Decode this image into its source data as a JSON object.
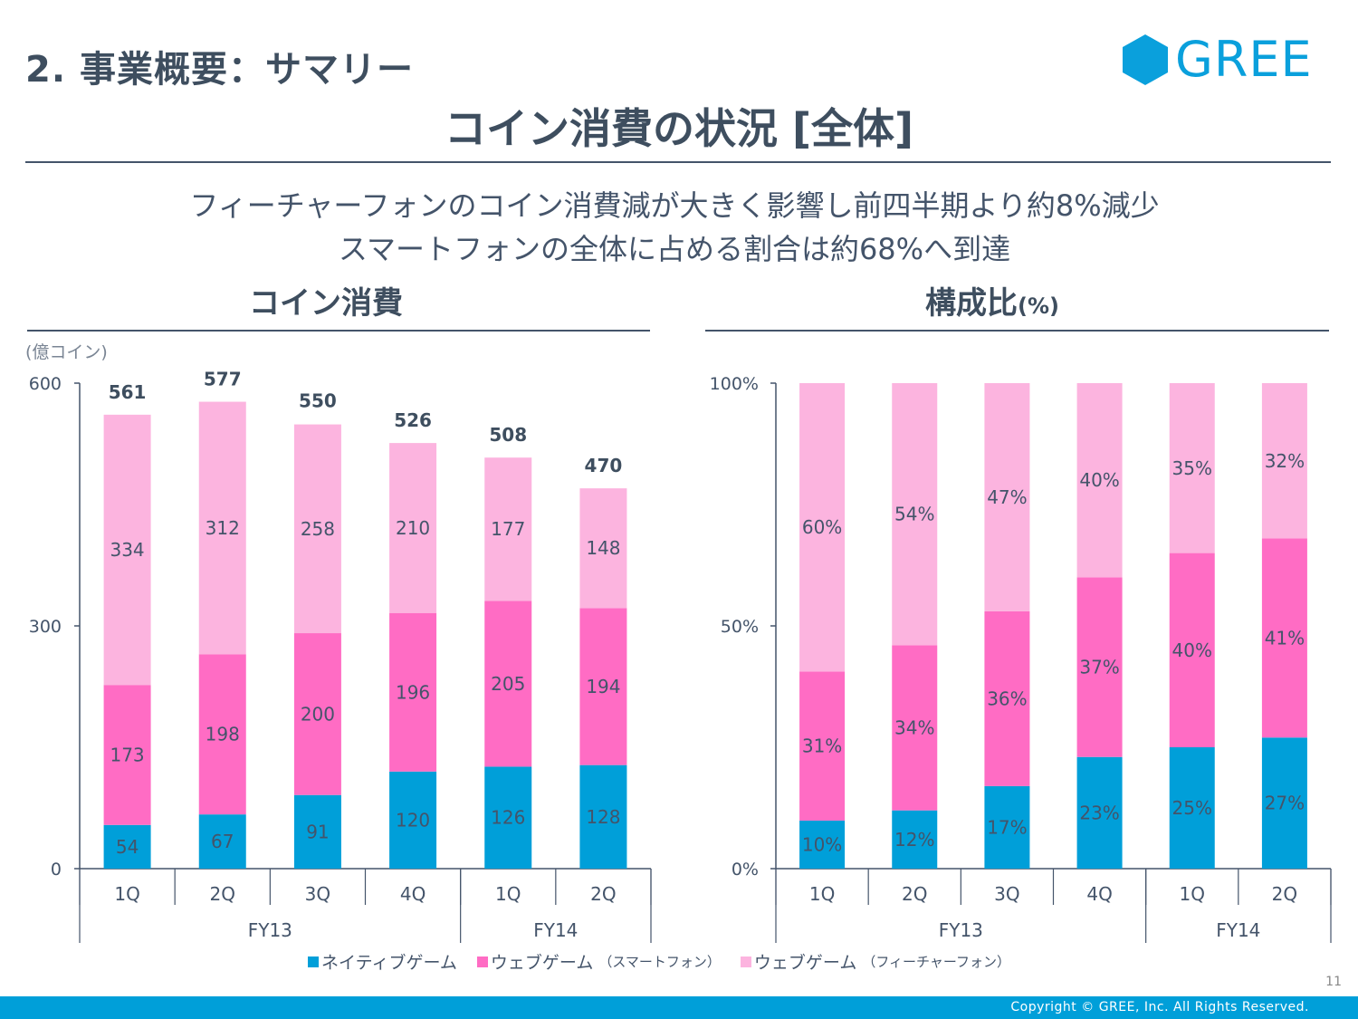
{
  "header": {
    "section_title": "2. 事業概要：サマリー",
    "logo_text": "GREE",
    "main_title": "コイン消費の状況 [全体]",
    "subtitle_lines": [
      "フィーチャーフォンのコイン消費減が大きく影響し前四半期より約8%減少",
      "スマートフォンの全体に占める割合は約68%へ到達"
    ]
  },
  "colors": {
    "native": "#009fd9",
    "web_smartphone": "#ff6cc4",
    "web_featurephone": "#fcb4df",
    "text": "#44546a",
    "brand": "#0aa0dc"
  },
  "chart_data": [
    {
      "type": "bar",
      "stacked": true,
      "title": "コイン消費",
      "unit_label": "(億コイン)",
      "categories": [
        "1Q",
        "2Q",
        "3Q",
        "4Q",
        "1Q",
        "2Q"
      ],
      "category_groups": [
        {
          "label": "FY13",
          "span": 4
        },
        {
          "label": "FY14",
          "span": 2
        }
      ],
      "ylim": [
        0,
        600
      ],
      "yticks": [
        0,
        300,
        600
      ],
      "ytick_labels": [
        "0",
        "300",
        "600"
      ],
      "series": [
        {
          "name": "ネイティブゲーム",
          "values": [
            54,
            67,
            91,
            120,
            126,
            128
          ]
        },
        {
          "name": "ウェブゲーム（スマートフォン）",
          "values": [
            173,
            198,
            200,
            196,
            205,
            194
          ]
        },
        {
          "name": "ウェブゲーム（フィーチャーフォン）",
          "values": [
            334,
            312,
            258,
            210,
            177,
            148
          ]
        }
      ],
      "totals": [
        561,
        577,
        550,
        526,
        508,
        470
      ],
      "grid": false
    },
    {
      "type": "bar",
      "stacked": true,
      "percent": true,
      "title": "構成比",
      "title_suffix": "(%)",
      "categories": [
        "1Q",
        "2Q",
        "3Q",
        "4Q",
        "1Q",
        "2Q"
      ],
      "category_groups": [
        {
          "label": "FY13",
          "span": 4
        },
        {
          "label": "FY14",
          "span": 2
        }
      ],
      "ylim": [
        0,
        100
      ],
      "yticks": [
        0,
        50,
        100
      ],
      "ytick_labels": [
        "0%",
        "50%",
        "100%"
      ],
      "series": [
        {
          "name": "ネイティブゲーム",
          "values": [
            10,
            12,
            17,
            23,
            25,
            27
          ]
        },
        {
          "name": "ウェブゲーム（スマートフォン）",
          "values": [
            31,
            34,
            36,
            37,
            40,
            41
          ]
        },
        {
          "name": "ウェブゲーム（フィーチャーフォン）",
          "values": [
            60,
            54,
            47,
            40,
            35,
            32
          ]
        }
      ],
      "grid": false
    }
  ],
  "legend": {
    "items": [
      {
        "label": "ネイティブゲーム",
        "sub": ""
      },
      {
        "label": "ウェブゲーム",
        "sub": "（スマートフォン）"
      },
      {
        "label": "ウェブゲーム",
        "sub": "（フィーチャーフォン）"
      }
    ],
    "position": "bottom-center"
  },
  "footer": {
    "page_number": "11",
    "copyright": "Copyright © GREE, Inc. All Rights Reserved."
  }
}
